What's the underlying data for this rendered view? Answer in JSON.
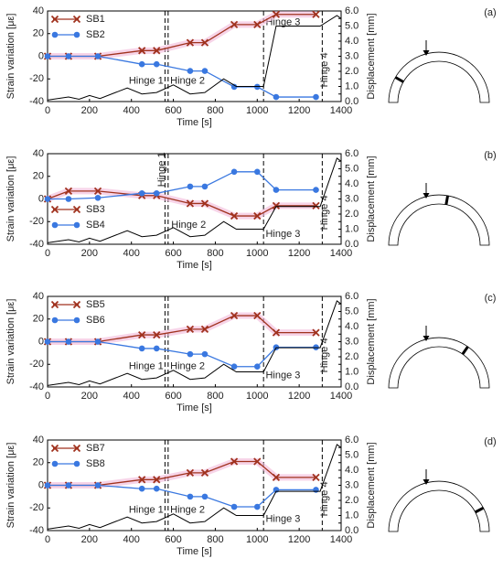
{
  "chart_data": [
    {
      "type": "line",
      "panel": "(a)",
      "xlabel": "Time [s]",
      "ylabel": "Strain variation [με]",
      "y2label": "Displacement [mm]",
      "xlim": [
        0,
        1400
      ],
      "xticks": [
        0,
        200,
        400,
        600,
        800,
        1000,
        1200,
        1400
      ],
      "ylim": [
        -40,
        40
      ],
      "yticks": [
        -40,
        -20,
        0,
        20,
        40
      ],
      "y2lim": [
        0,
        6
      ],
      "y2ticks": [
        {
          "value": 0,
          "label": "0.0"
        },
        {
          "value": 0.5,
          "label": "0.5"
        },
        {
          "value": 1,
          "label": "1.0"
        },
        {
          "value": 1.5,
          "label": "1.5"
        },
        {
          "value": 2,
          "label": "2.0"
        },
        {
          "value": 2.5,
          "label": "2.5"
        },
        {
          "value": 3,
          "label": "3.0"
        },
        {
          "value": 3.5,
          "label": "3.5"
        },
        {
          "value": 4,
          "label": "4.0"
        },
        {
          "value": 4.5,
          "label": "4.5"
        },
        {
          "value": 5,
          "label": "5.0"
        },
        {
          "value": 5.5,
          "label": "5.5"
        },
        {
          "value": 6,
          "label": "6.0"
        }
      ],
      "vlines": [
        560,
        575,
        1030,
        1310
      ],
      "annotations": [
        "Hinge 1",
        "Hinge 2",
        "Hinge 3",
        "Hinge 4"
      ],
      "legend": "upper left",
      "series": [
        {
          "name": "SB1",
          "color": "#a0321e",
          "marker": "x",
          "x": [
            0,
            100,
            240,
            450,
            520,
            680,
            750,
            890,
            1000,
            1090,
            1280
          ],
          "values": [
            0,
            0,
            0,
            5,
            5,
            12,
            12,
            28,
            28,
            37,
            37
          ]
        },
        {
          "name": "SB2",
          "color": "#3a78e0",
          "marker": "o",
          "x": [
            0,
            100,
            240,
            450,
            520,
            680,
            750,
            890,
            1000,
            1090,
            1280
          ],
          "values": [
            0,
            0,
            0,
            -7,
            -7,
            -13,
            -13,
            -27,
            -27,
            -36,
            -36
          ]
        },
        {
          "color": "#000000",
          "axis": "y2",
          "x": [
            0,
            100,
            150,
            200,
            250,
            380,
            450,
            520,
            600,
            680,
            750,
            840,
            900,
            1030,
            1090,
            1300,
            1380,
            1400
          ],
          "values": [
            0.1,
            0.3,
            0.15,
            0.4,
            0.2,
            0.9,
            0.5,
            0.6,
            1.1,
            0.5,
            0.6,
            1.5,
            1.0,
            1.0,
            5.0,
            5.0,
            5.7,
            5.5
          ]
        }
      ]
    },
    {
      "type": "line",
      "panel": "(b)",
      "xlabel": "Time [s]",
      "ylabel": "Strain variation [με]",
      "y2label": "Displacement [mm]",
      "xlim": [
        0,
        1400
      ],
      "xticks": [
        0,
        200,
        400,
        600,
        800,
        1000,
        1200,
        1400
      ],
      "ylim": [
        -40,
        40
      ],
      "yticks": [
        -40,
        -20,
        0,
        20,
        40
      ],
      "y2lim": [
        0,
        6
      ],
      "y2ticks": [
        {
          "value": 0,
          "label": "0.0"
        },
        {
          "value": 0.5,
          "label": "0.5"
        },
        {
          "value": 1,
          "label": "1.0"
        },
        {
          "value": 1.5,
          "label": "1.5"
        },
        {
          "value": 2,
          "label": "2.0"
        },
        {
          "value": 2.5,
          "label": "2.5"
        },
        {
          "value": 3,
          "label": "3.0"
        },
        {
          "value": 3.5,
          "label": "3.5"
        },
        {
          "value": 4,
          "label": "4.0"
        },
        {
          "value": 4.5,
          "label": "4.5"
        },
        {
          "value": 5,
          "label": "5.0"
        },
        {
          "value": 5.5,
          "label": "5.5"
        },
        {
          "value": 6,
          "label": "6.0"
        }
      ],
      "vlines": [
        560,
        575,
        1030,
        1310
      ],
      "annotations": [
        "Hinge 1",
        "Hinge 2",
        "Hinge 3",
        "Hinge 4"
      ],
      "legend": "lower left",
      "series": [
        {
          "name": "SB3",
          "color": "#a0321e",
          "marker": "x",
          "x": [
            0,
            100,
            240,
            450,
            520,
            680,
            750,
            890,
            1000,
            1090,
            1280
          ],
          "values": [
            0,
            7,
            7,
            3,
            3,
            -4,
            -4,
            -15,
            -15,
            -6,
            -6
          ]
        },
        {
          "name": "SB4",
          "color": "#3a78e0",
          "marker": "o",
          "x": [
            0,
            100,
            240,
            450,
            520,
            680,
            750,
            890,
            1000,
            1090,
            1280
          ],
          "values": [
            0,
            0,
            1,
            5,
            5,
            11,
            11,
            24,
            24,
            8,
            8
          ]
        },
        {
          "color": "#000000",
          "axis": "y2",
          "x": [
            0,
            100,
            150,
            200,
            250,
            380,
            450,
            520,
            600,
            680,
            750,
            840,
            900,
            1030,
            1090,
            1300,
            1380,
            1400
          ],
          "values": [
            0.1,
            0.3,
            0.15,
            0.4,
            0.2,
            0.9,
            0.5,
            0.6,
            1.1,
            0.5,
            0.6,
            1.5,
            1.0,
            1.0,
            2.5,
            2.5,
            5.7,
            5.5
          ]
        }
      ]
    },
    {
      "type": "line",
      "panel": "(c)",
      "xlabel": "Time [s]",
      "ylabel": "Strain variation [με]",
      "y2label": "Displacement [mm]",
      "xlim": [
        0,
        1400
      ],
      "xticks": [
        0,
        200,
        400,
        600,
        800,
        1000,
        1200,
        1400
      ],
      "ylim": [
        -40,
        40
      ],
      "yticks": [
        -40,
        -20,
        0,
        20,
        40
      ],
      "y2lim": [
        0,
        6
      ],
      "y2ticks": [
        {
          "value": 0,
          "label": "0.0"
        },
        {
          "value": 0.5,
          "label": "0.5"
        },
        {
          "value": 1,
          "label": "1.0"
        },
        {
          "value": 1.5,
          "label": "1.5"
        },
        {
          "value": 2,
          "label": "2.0"
        },
        {
          "value": 2.5,
          "label": "2.5"
        },
        {
          "value": 3,
          "label": "3.0"
        },
        {
          "value": 3.5,
          "label": "3.5"
        },
        {
          "value": 4,
          "label": "4.0"
        },
        {
          "value": 4.5,
          "label": "4.5"
        },
        {
          "value": 5,
          "label": "5.0"
        },
        {
          "value": 5.5,
          "label": "5.5"
        },
        {
          "value": 6,
          "label": "6.0"
        }
      ],
      "vlines": [
        560,
        575,
        1030,
        1310
      ],
      "annotations": [
        "Hinge 1",
        "Hinge 2",
        "Hinge 3",
        "Hinge 4"
      ],
      "legend": "upper left",
      "series": [
        {
          "name": "SB5",
          "color": "#a0321e",
          "marker": "x",
          "x": [
            0,
            100,
            240,
            450,
            520,
            680,
            750,
            890,
            1000,
            1090,
            1280
          ],
          "values": [
            0,
            0,
            0,
            6,
            6,
            11,
            11,
            23,
            23,
            8,
            8
          ]
        },
        {
          "name": "SB6",
          "color": "#3a78e0",
          "marker": "o",
          "x": [
            0,
            100,
            240,
            450,
            520,
            680,
            750,
            890,
            1000,
            1090,
            1280
          ],
          "values": [
            0,
            0,
            0,
            -6,
            -6,
            -11,
            -11,
            -22,
            -22,
            -5,
            -5
          ]
        },
        {
          "color": "#000000",
          "axis": "y2",
          "x": [
            0,
            100,
            150,
            200,
            250,
            380,
            450,
            520,
            600,
            680,
            750,
            840,
            900,
            1030,
            1090,
            1300,
            1380,
            1400
          ],
          "values": [
            0.1,
            0.3,
            0.15,
            0.4,
            0.2,
            0.9,
            0.5,
            0.6,
            1.1,
            0.5,
            0.6,
            1.5,
            1.0,
            1.0,
            2.6,
            2.6,
            5.7,
            5.5
          ]
        }
      ]
    },
    {
      "type": "line",
      "panel": "(d)",
      "xlabel": "Time [s]",
      "ylabel": "Strain variation [με]",
      "y2label": "Displacement [mm]",
      "xlim": [
        0,
        1400
      ],
      "xticks": [
        0,
        200,
        400,
        600,
        800,
        1000,
        1200,
        1400
      ],
      "ylim": [
        -40,
        40
      ],
      "yticks": [
        -40,
        -20,
        0,
        20,
        40
      ],
      "y2lim": [
        0,
        6
      ],
      "y2ticks": [
        {
          "value": 0,
          "label": "0.0"
        },
        {
          "value": 0.5,
          "label": "0.5"
        },
        {
          "value": 1,
          "label": "1.0"
        },
        {
          "value": 1.5,
          "label": "1.5"
        },
        {
          "value": 2,
          "label": "2.0"
        },
        {
          "value": 2.5,
          "label": "2.5"
        },
        {
          "value": 3,
          "label": "3.0"
        },
        {
          "value": 3.5,
          "label": "3.5"
        },
        {
          "value": 4,
          "label": "4.0"
        },
        {
          "value": 4.5,
          "label": "4.5"
        },
        {
          "value": 5,
          "label": "5.0"
        },
        {
          "value": 5.5,
          "label": "5.5"
        },
        {
          "value": 6,
          "label": "6.0"
        }
      ],
      "vlines": [
        560,
        575,
        1030,
        1310
      ],
      "annotations": [
        "Hinge 1",
        "Hinge 2",
        "Hinge 3",
        "Hinge 4"
      ],
      "legend": "upper left",
      "series": [
        {
          "name": "SB7",
          "color": "#a0321e",
          "marker": "x",
          "x": [
            0,
            100,
            240,
            450,
            520,
            680,
            750,
            890,
            1000,
            1090,
            1280
          ],
          "values": [
            0,
            0,
            0,
            5,
            5,
            11,
            11,
            21,
            21,
            7,
            7
          ]
        },
        {
          "name": "SB8",
          "color": "#3a78e0",
          "marker": "o",
          "x": [
            0,
            100,
            240,
            450,
            520,
            680,
            750,
            890,
            1000,
            1090,
            1280
          ],
          "values": [
            0,
            0,
            0,
            -3,
            -3,
            -10,
            -10,
            -19,
            -19,
            -4,
            -4
          ]
        },
        {
          "color": "#000000",
          "axis": "y2",
          "x": [
            0,
            100,
            150,
            200,
            250,
            380,
            450,
            520,
            600,
            680,
            750,
            840,
            900,
            1030,
            1090,
            1300,
            1380,
            1400
          ],
          "values": [
            0.1,
            0.3,
            0.15,
            0.4,
            0.2,
            0.9,
            0.5,
            0.6,
            1.1,
            0.5,
            0.6,
            1.5,
            1.0,
            1.0,
            2.6,
            2.6,
            5.7,
            5.5
          ]
        }
      ]
    }
  ]
}
